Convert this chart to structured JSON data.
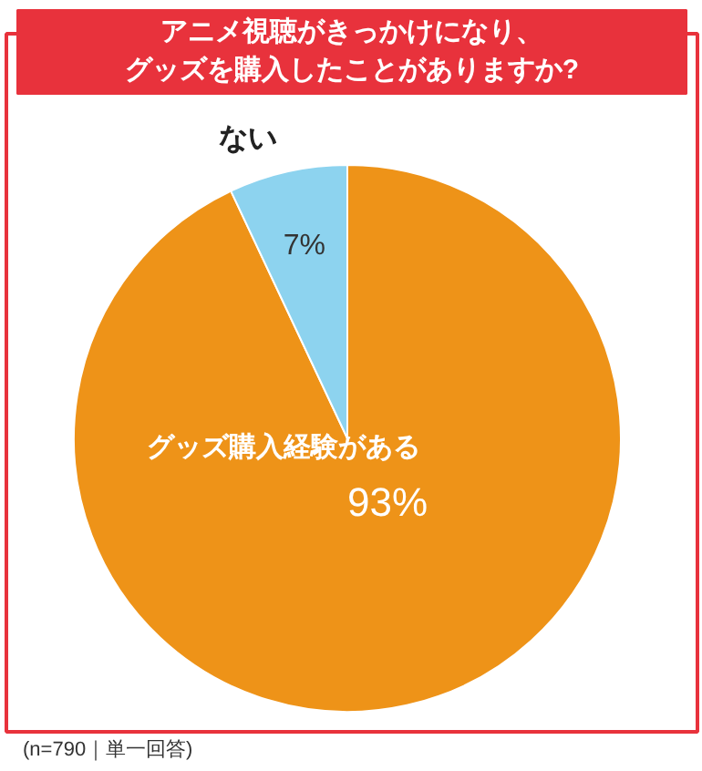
{
  "chart_data": {
    "type": "pie",
    "title": "アニメ視聴がきっかけになり、",
    "subtitle": "グッズを購入したことがありますか?",
    "categories": [
      "グッズ購入経験がある",
      "ない"
    ],
    "values": [
      93,
      7
    ],
    "colors": [
      "#ee9318",
      "#8dd3ef"
    ],
    "value_labels": [
      "93%",
      "7%"
    ],
    "annotations": [
      "(n=790｜単一回答)"
    ]
  }
}
